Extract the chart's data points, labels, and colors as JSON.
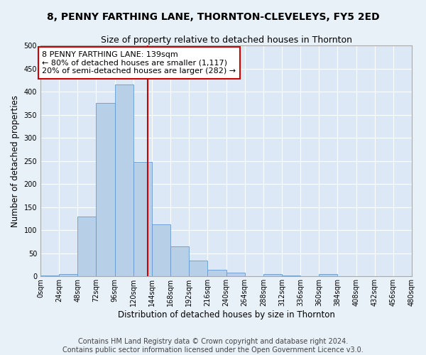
{
  "title": "8, PENNY FARTHING LANE, THORNTON-CLEVELEYS, FY5 2ED",
  "subtitle": "Size of property relative to detached houses in Thornton",
  "xlabel": "Distribution of detached houses by size in Thornton",
  "ylabel": "Number of detached properties",
  "bar_color": "#b8cfe8",
  "bar_edge_color": "#6699cc",
  "background_color": "#dce8f5",
  "fig_background_color": "#e8f0f8",
  "grid_color": "#ffffff",
  "bin_edges": [
    0,
    24,
    48,
    72,
    96,
    120,
    144,
    168,
    192,
    216,
    240,
    264,
    288,
    312,
    336,
    360,
    384,
    408,
    432,
    456,
    480
  ],
  "bar_heights": [
    2,
    5,
    130,
    375,
    415,
    248,
    113,
    65,
    34,
    14,
    8,
    0,
    6,
    2,
    0,
    6,
    0,
    0,
    0,
    1
  ],
  "tick_labels": [
    "0sqm",
    "24sqm",
    "48sqm",
    "72sqm",
    "96sqm",
    "120sqm",
    "144sqm",
    "168sqm",
    "192sqm",
    "216sqm",
    "240sqm",
    "264sqm",
    "288sqm",
    "312sqm",
    "336sqm",
    "360sqm",
    "384sqm",
    "408sqm",
    "432sqm",
    "456sqm",
    "480sqm"
  ],
  "property_size": 139,
  "annotation_line1": "8 PENNY FARTHING LANE: 139sqm",
  "annotation_line2": "← 80% of detached houses are smaller (1,117)",
  "annotation_line3": "20% of semi-detached houses are larger (282) →",
  "vline_color": "#cc0000",
  "annotation_box_edge": "#cc0000",
  "annotation_box_face": "#ffffff",
  "yticks": [
    0,
    50,
    100,
    150,
    200,
    250,
    300,
    350,
    400,
    450,
    500
  ],
  "ylim": [
    0,
    500
  ],
  "footer_line1": "Contains HM Land Registry data © Crown copyright and database right 2024.",
  "footer_line2": "Contains public sector information licensed under the Open Government Licence v3.0.",
  "title_fontsize": 10,
  "subtitle_fontsize": 9,
  "axis_label_fontsize": 8.5,
  "tick_fontsize": 7,
  "annotation_fontsize": 8,
  "footer_fontsize": 7
}
